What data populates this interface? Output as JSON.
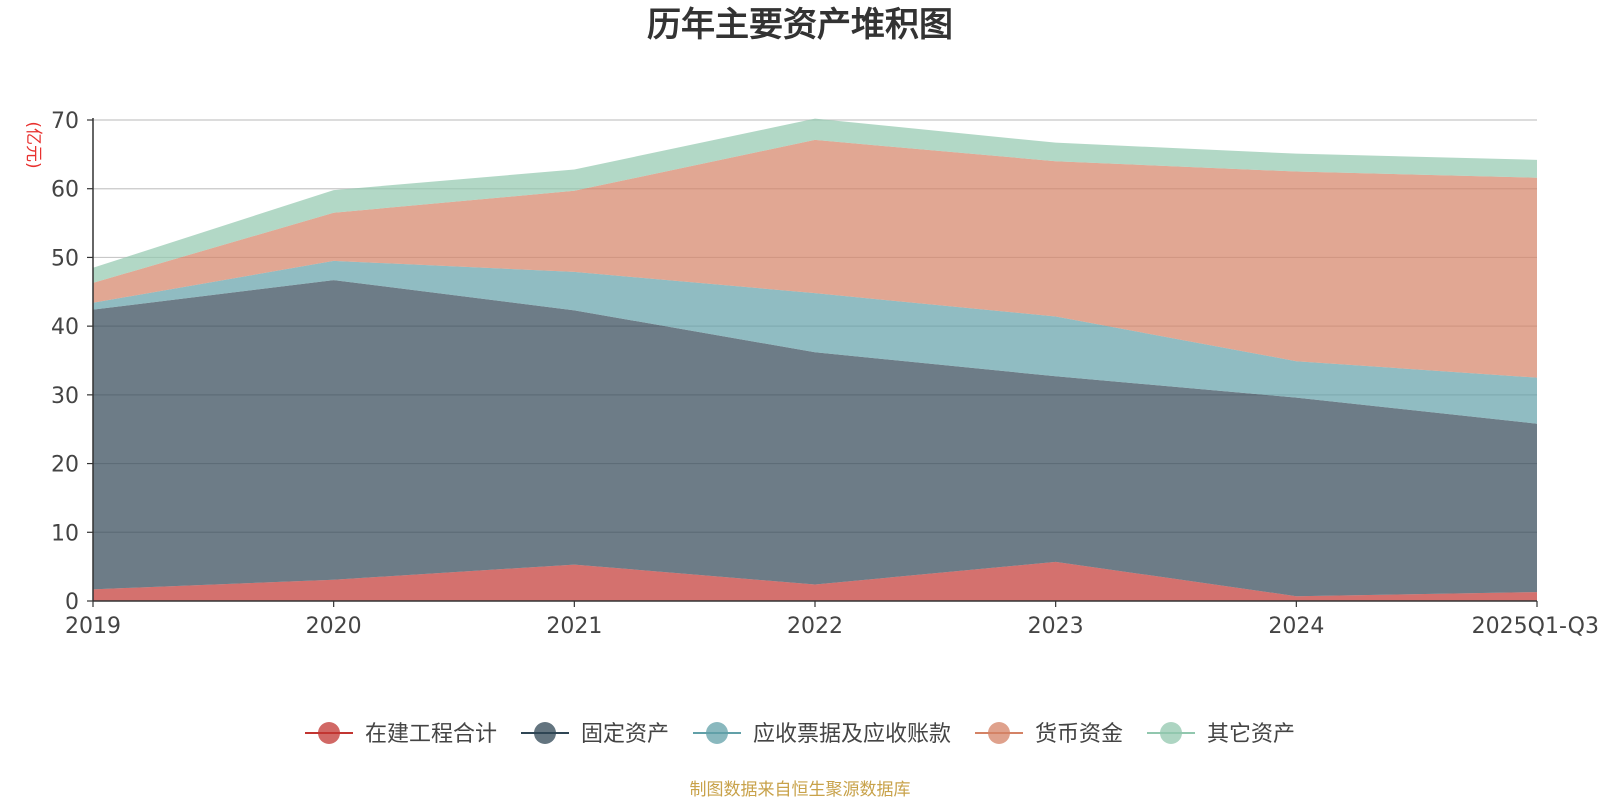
{
  "chart_data": {
    "type": "area",
    "stacked": true,
    "title": "历年主要资产堆积图",
    "unit_label": "(亿元)",
    "categories": [
      "2019",
      "2020",
      "2021",
      "2022",
      "2023",
      "2024",
      "2025Q1-Q3"
    ],
    "ylim": [
      0,
      70
    ],
    "yticks": [
      0,
      10,
      20,
      30,
      40,
      50,
      60,
      70
    ],
    "grid": true,
    "legend_position": "bottom",
    "series": [
      {
        "name": "在建工程合计",
        "color": "#c23531",
        "values": [
          1.7,
          3.1,
          5.3,
          2.4,
          5.7,
          0.7,
          1.3
        ]
      },
      {
        "name": "固定资产",
        "color": "#2f4554",
        "values": [
          40.7,
          43.6,
          37.0,
          33.8,
          27.0,
          28.9,
          24.5
        ]
      },
      {
        "name": "应收票据及应收账款",
        "color": "#61a0a8",
        "values": [
          1.0,
          2.8,
          5.6,
          8.6,
          8.7,
          5.3,
          6.7
        ]
      },
      {
        "name": "货币资金",
        "color": "#d48265",
        "values": [
          2.9,
          7.0,
          11.8,
          22.3,
          22.6,
          27.6,
          29.1
        ]
      },
      {
        "name": "其它资产",
        "color": "#91c7ae",
        "values": [
          2.2,
          3.3,
          3.1,
          3.1,
          2.7,
          2.6,
          2.6
        ]
      }
    ],
    "source_note": "制图数据来自恒生聚源数据库"
  }
}
